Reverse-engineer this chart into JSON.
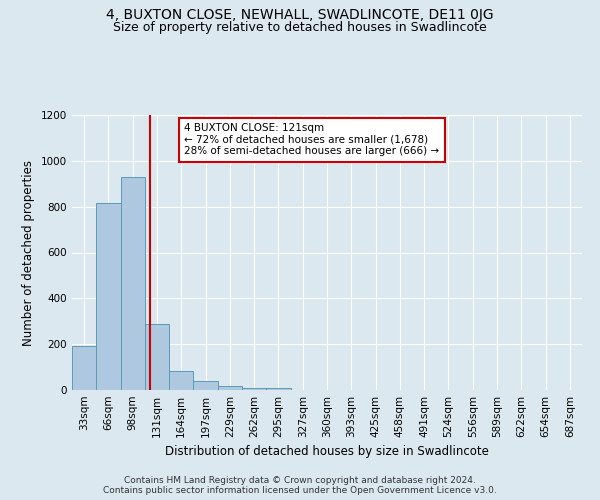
{
  "title": "4, BUXTON CLOSE, NEWHALL, SWADLINCOTE, DE11 0JG",
  "subtitle": "Size of property relative to detached houses in Swadlincote",
  "xlabel": "Distribution of detached houses by size in Swadlincote",
  "ylabel": "Number of detached properties",
  "footer_line1": "Contains HM Land Registry data © Crown copyright and database right 2024.",
  "footer_line2": "Contains public sector information licensed under the Open Government Licence v3.0.",
  "annotation_line1": "4 BUXTON CLOSE: 121sqm",
  "annotation_line2": "← 72% of detached houses are smaller (1,678)",
  "annotation_line3": "28% of semi-detached houses are larger (666) →",
  "bar_labels": [
    "33sqm",
    "66sqm",
    "98sqm",
    "131sqm",
    "164sqm",
    "197sqm",
    "229sqm",
    "262sqm",
    "295sqm",
    "327sqm",
    "360sqm",
    "393sqm",
    "425sqm",
    "458sqm",
    "491sqm",
    "524sqm",
    "556sqm",
    "589sqm",
    "622sqm",
    "654sqm",
    "687sqm"
  ],
  "bar_values": [
    190,
    815,
    930,
    290,
    82,
    38,
    18,
    10,
    10,
    0,
    0,
    0,
    0,
    0,
    0,
    0,
    0,
    0,
    0,
    0,
    0
  ],
  "bar_color": "#aec8e0",
  "bar_edge_color": "#5a9aba",
  "bar_width": 1.0,
  "vline_color": "#cc0000",
  "annotation_box_color": "#ffffff",
  "annotation_box_edge_color": "#cc0000",
  "background_color": "#dce8f0",
  "ylim": [
    0,
    1200
  ],
  "yticks": [
    0,
    200,
    400,
    600,
    800,
    1000,
    1200
  ],
  "title_fontsize": 10,
  "subtitle_fontsize": 9,
  "axis_label_fontsize": 8.5,
  "tick_fontsize": 7.5,
  "annotation_fontsize": 7.5,
  "footer_fontsize": 6.5
}
